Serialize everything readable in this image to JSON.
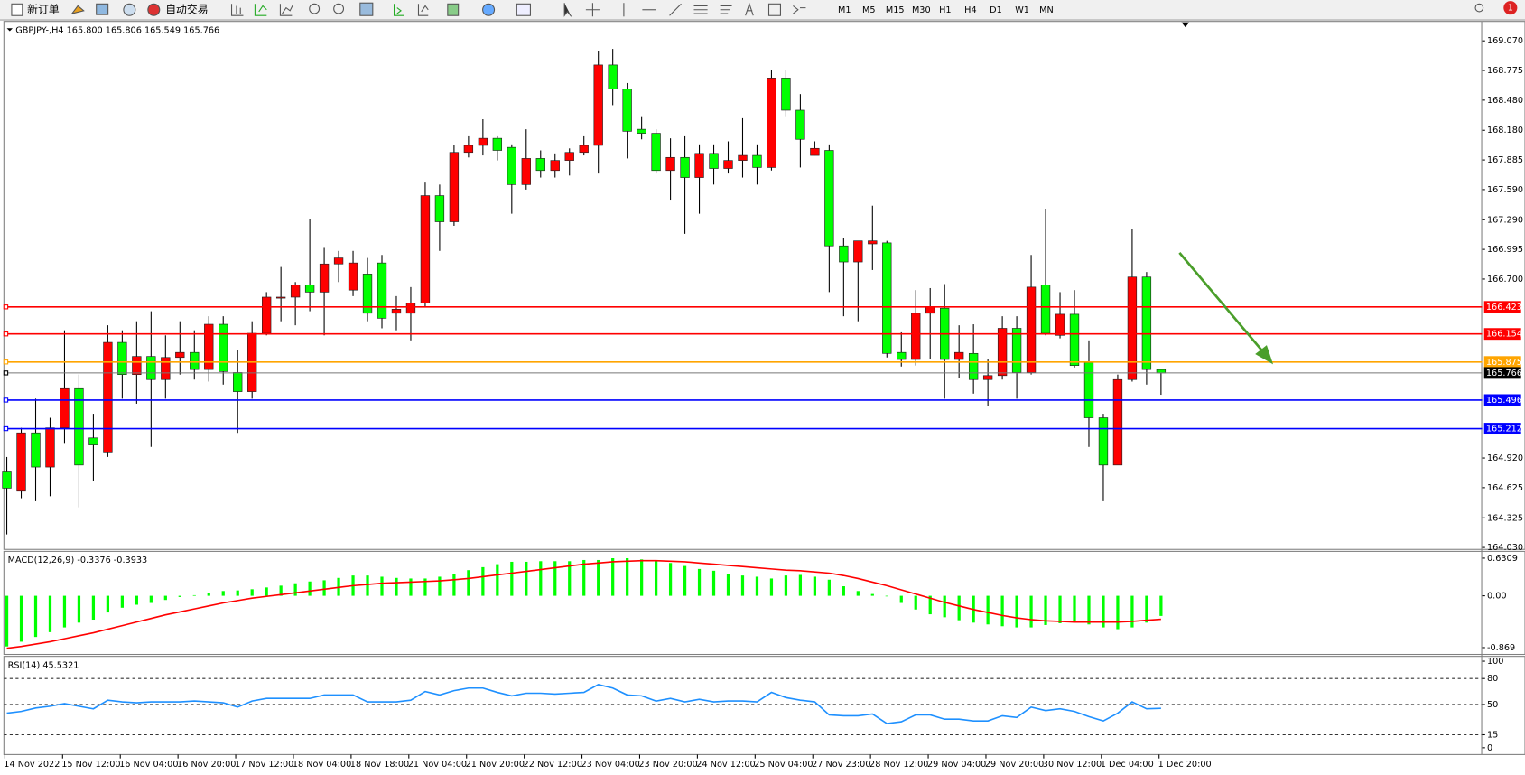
{
  "toolbar": {
    "buttons": [
      "新订单",
      "自动交易"
    ],
    "timeframes": [
      "M1",
      "M5",
      "M15",
      "M30",
      "H1",
      "H4",
      "D1",
      "W1",
      "MN"
    ],
    "badge": "1"
  },
  "chart_data": [
    {
      "type": "candlestick",
      "title": "GBPJPY-,H4 165.800 165.806 165.549 165.766",
      "categories": [
        "14 Nov 2022",
        null,
        null,
        null,
        "15 Nov 12:00",
        null,
        null,
        null,
        "16 Nov 04:00",
        null,
        null,
        null,
        "16 Nov 20:00",
        null,
        null,
        null,
        "17 Nov 12:00",
        null,
        null,
        null,
        "18 Nov 04:00",
        null,
        null,
        null,
        "18 Nov 18:00",
        null,
        null,
        null,
        "21 Nov 04:00",
        null,
        null,
        null,
        "21 Nov 20:00",
        null,
        null,
        null,
        "22 Nov 12:00",
        null,
        null,
        null,
        "23 Nov 04:00",
        null,
        null,
        null,
        "23 Nov 20:00",
        null,
        null,
        null,
        "24 Nov 12:00",
        null,
        null,
        null,
        "25 Nov 04:00",
        null,
        null,
        null,
        "27 Nov 23:00",
        null,
        null,
        null,
        "28 Nov 12:00",
        null,
        null,
        null,
        "29 Nov 04:00",
        null,
        null,
        null,
        "29 Nov 20:00",
        null,
        null,
        null,
        "30 Nov 12:00",
        null,
        null,
        null,
        "1 Dec 04:00",
        null,
        null,
        null,
        "1 Dec 20:00"
      ],
      "open": [
        164.79,
        164.59,
        165.17,
        164.83,
        165.22,
        165.61,
        165.12,
        164.98,
        166.07,
        165.75,
        165.93,
        165.7,
        165.92,
        165.97,
        165.8,
        166.25,
        165.77,
        165.58,
        166.16,
        166.51,
        166.52,
        166.64,
        166.57,
        166.85,
        166.59,
        166.75,
        166.86,
        166.36,
        166.36,
        166.46,
        167.53,
        167.27,
        167.96,
        168.03,
        168.1,
        168.01,
        167.64,
        167.9,
        167.78,
        167.88,
        167.96,
        168.03,
        168.83,
        168.59,
        168.19,
        168.15,
        167.78,
        167.91,
        167.71,
        167.95,
        167.8,
        167.88,
        167.93,
        167.81,
        168.7,
        168.38,
        167.93,
        167.98,
        167.03,
        166.87,
        167.05,
        167.06,
        165.97,
        165.9,
        166.36,
        166.41,
        165.9,
        165.96,
        165.7,
        165.74,
        166.21,
        165.77,
        166.64,
        166.14,
        166.35,
        165.87,
        165.32,
        164.85,
        165.7,
        166.72,
        165.8
      ],
      "high": [
        164.93,
        165.22,
        165.51,
        165.32,
        166.19,
        165.75,
        165.36,
        166.24,
        166.19,
        166.28,
        166.38,
        166.14,
        166.28,
        166.19,
        166.33,
        166.33,
        165.99,
        166.28,
        166.57,
        166.82,
        166.67,
        167.3,
        167.01,
        166.98,
        166.98,
        166.91,
        166.94,
        166.53,
        166.62,
        167.66,
        167.64,
        168.03,
        168.12,
        168.29,
        168.12,
        168.04,
        168.19,
        167.98,
        167.95,
        168.0,
        168.12,
        168.97,
        168.99,
        168.65,
        168.32,
        168.19,
        168.1,
        168.12,
        168.04,
        168.04,
        168.07,
        168.3,
        168.04,
        168.78,
        168.78,
        168.54,
        168.07,
        168.04,
        167.11,
        167.08,
        167.43,
        167.08,
        166.17,
        166.59,
        166.61,
        166.65,
        166.24,
        166.25,
        165.9,
        166.33,
        166.33,
        166.94,
        167.4,
        166.57,
        166.59,
        166.09,
        165.36,
        165.75,
        167.2,
        166.77,
        165.806
      ],
      "low": [
        164.16,
        164.52,
        164.49,
        164.54,
        165.07,
        164.43,
        164.69,
        164.93,
        165.51,
        165.46,
        165.03,
        165.51,
        165.75,
        165.7,
        165.68,
        165.65,
        165.17,
        165.51,
        166.14,
        166.28,
        166.24,
        166.38,
        166.14,
        166.67,
        166.53,
        166.28,
        166.21,
        166.19,
        166.09,
        166.43,
        166.98,
        167.23,
        167.91,
        167.93,
        167.88,
        167.35,
        167.59,
        167.71,
        167.71,
        167.73,
        167.93,
        167.75,
        168.43,
        167.9,
        168.09,
        167.75,
        167.49,
        167.15,
        167.35,
        167.64,
        167.75,
        167.71,
        167.64,
        167.78,
        168.32,
        167.81,
        167.93,
        166.57,
        166.33,
        166.28,
        166.79,
        165.92,
        165.83,
        165.84,
        165.9,
        165.51,
        165.72,
        165.56,
        165.44,
        165.7,
        165.51,
        165.75,
        166.14,
        166.11,
        165.82,
        165.03,
        164.49,
        164.85,
        165.68,
        165.65,
        165.549
      ],
      "close": [
        164.62,
        165.17,
        164.83,
        165.22,
        165.61,
        164.85,
        165.05,
        166.07,
        165.75,
        165.93,
        165.7,
        165.92,
        165.97,
        165.8,
        166.25,
        165.78,
        165.58,
        166.16,
        166.52,
        166.52,
        166.64,
        166.57,
        166.85,
        166.91,
        166.86,
        166.36,
        166.31,
        166.4,
        166.46,
        167.53,
        167.27,
        167.96,
        168.03,
        168.1,
        167.98,
        167.64,
        167.9,
        167.78,
        167.88,
        167.96,
        168.03,
        168.83,
        168.59,
        168.17,
        168.15,
        167.78,
        167.91,
        167.71,
        167.95,
        167.8,
        167.88,
        167.93,
        167.81,
        168.7,
        168.38,
        168.09,
        168.0,
        167.03,
        166.87,
        167.08,
        167.08,
        165.96,
        165.9,
        166.36,
        166.42,
        165.9,
        165.97,
        165.7,
        165.74,
        166.21,
        165.77,
        166.62,
        166.16,
        166.35,
        165.84,
        165.32,
        164.85,
        165.7,
        166.72,
        165.8,
        165.766
      ],
      "up_color": "#ff0000",
      "down_color": "#00ff00",
      "ylim": [
        164.03,
        169.244
      ],
      "yticks": [
        {
          "value": 169.07,
          "label": "169.070"
        },
        {
          "value": 168.775,
          "label": "168.775"
        },
        {
          "value": 168.48,
          "label": "168.480"
        },
        {
          "value": 168.18,
          "label": "168.180"
        },
        {
          "value": 167.885,
          "label": "167.885"
        },
        {
          "value": 167.59,
          "label": "167.590"
        },
        {
          "value": 167.29,
          "label": "167.290"
        },
        {
          "value": 166.995,
          "label": "166.995"
        },
        {
          "value": 166.7,
          "label": "166.700"
        },
        {
          "value": 164.92,
          "label": "164.920"
        },
        {
          "value": 164.625,
          "label": "164.625"
        },
        {
          "value": 164.325,
          "label": "164.325"
        },
        {
          "value": 164.03,
          "label": "164.030"
        }
      ],
      "levels": [
        {
          "value": 166.423,
          "label": "166.423",
          "color": "#ff0000"
        },
        {
          "value": 166.154,
          "label": "166.154",
          "color": "#ff0000"
        },
        {
          "value": 165.875,
          "label": "165.875",
          "color": "#ffa500"
        },
        {
          "value": 165.766,
          "label": "165.766",
          "color": "#000000"
        },
        {
          "value": 165.496,
          "label": "165.496",
          "color": "#0000ff"
        },
        {
          "value": 165.212,
          "label": "165.212",
          "color": "#0000ff"
        }
      ]
    },
    {
      "type": "macd",
      "title": "MACD(12,26,9) -0.3376 -0.3933",
      "ylim": [
        -0.869,
        0.6309
      ],
      "yticks": [
        0.6309,
        {
          "value": 0,
          "label": "0.00"
        },
        -0.869
      ],
      "series": [
        {
          "color": "#00ff00",
          "style": "bar",
          "values": [
            -0.85,
            -0.77,
            -0.69,
            -0.61,
            -0.53,
            -0.45,
            -0.4,
            -0.28,
            -0.2,
            -0.15,
            -0.12,
            -0.07,
            -0.02,
            0.01,
            0.04,
            0.08,
            0.09,
            0.11,
            0.14,
            0.17,
            0.21,
            0.24,
            0.26,
            0.3,
            0.34,
            0.34,
            0.32,
            0.3,
            0.29,
            0.29,
            0.32,
            0.37,
            0.43,
            0.48,
            0.53,
            0.57,
            0.57,
            0.58,
            0.58,
            0.58,
            0.6,
            0.6,
            0.63,
            0.63,
            0.61,
            0.58,
            0.55,
            0.5,
            0.45,
            0.42,
            0.37,
            0.34,
            0.32,
            0.29,
            0.34,
            0.35,
            0.32,
            0.27,
            0.16,
            0.08,
            0.03,
            -0.01,
            -0.12,
            -0.23,
            -0.31,
            -0.36,
            -0.41,
            -0.45,
            -0.48,
            -0.51,
            -0.53,
            -0.53,
            -0.49,
            -0.46,
            -0.45,
            -0.48,
            -0.53,
            -0.56,
            -0.53,
            -0.45,
            -0.3376
          ]
        },
        {
          "color": "#ff0000",
          "style": "line",
          "values": [
            -0.88,
            -0.85,
            -0.81,
            -0.77,
            -0.72,
            -0.67,
            -0.62,
            -0.56,
            -0.5,
            -0.44,
            -0.38,
            -0.32,
            -0.27,
            -0.22,
            -0.17,
            -0.12,
            -0.08,
            -0.04,
            -0.01,
            0.02,
            0.05,
            0.08,
            0.11,
            0.14,
            0.17,
            0.19,
            0.21,
            0.22,
            0.23,
            0.24,
            0.25,
            0.27,
            0.29,
            0.32,
            0.35,
            0.38,
            0.41,
            0.44,
            0.47,
            0.5,
            0.53,
            0.55,
            0.57,
            0.58,
            0.59,
            0.59,
            0.58,
            0.57,
            0.55,
            0.53,
            0.51,
            0.49,
            0.47,
            0.45,
            0.43,
            0.42,
            0.4,
            0.38,
            0.34,
            0.29,
            0.23,
            0.17,
            0.1,
            0.03,
            -0.04,
            -0.11,
            -0.17,
            -0.23,
            -0.28,
            -0.33,
            -0.37,
            -0.4,
            -0.42,
            -0.43,
            -0.44,
            -0.44,
            -0.44,
            -0.44,
            -0.43,
            -0.41,
            -0.3933
          ]
        }
      ]
    },
    {
      "type": "line",
      "title": "RSI(14) 45.5321",
      "ylim": [
        0,
        100
      ],
      "yticks": [
        100,
        80,
        50,
        15,
        0
      ],
      "levels": [
        80,
        50,
        15
      ],
      "series": [
        {
          "color": "#1e90ff",
          "values": [
            40,
            42,
            46,
            48,
            51,
            48,
            45,
            55,
            53,
            52,
            53,
            53,
            53,
            54,
            53,
            52,
            47,
            54,
            57,
            57,
            57,
            57,
            61,
            61,
            61,
            53,
            53,
            53,
            55,
            65,
            61,
            66,
            69,
            69,
            64,
            60,
            63,
            63,
            62,
            63,
            64,
            73,
            69,
            61,
            60,
            54,
            57,
            53,
            56,
            53,
            54,
            54,
            53,
            64,
            58,
            55,
            53,
            38,
            37,
            37,
            39,
            28,
            30,
            38,
            38,
            33,
            33,
            31,
            31,
            37,
            35,
            47,
            43,
            45,
            42,
            36,
            31,
            40,
            53,
            45,
            45.5321
          ]
        }
      ]
    }
  ]
}
